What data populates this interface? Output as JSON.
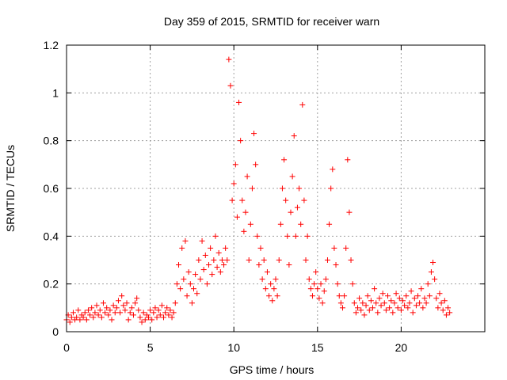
{
  "chart_data": {
    "type": "scatter",
    "title": "Day 359 of 2015, SRMTID for receiver warn",
    "xlabel": "GPS time / hours",
    "ylabel": "SRMTID / TECUs",
    "xlim": [
      0,
      25
    ],
    "ylim": [
      0,
      1.2
    ],
    "xticks": [
      0,
      5,
      10,
      15,
      20
    ],
    "xtick_labels": [
      "0",
      "5",
      "10",
      "15",
      "20"
    ],
    "yticks": [
      0,
      0.2,
      0.4,
      0.6,
      0.8,
      1,
      1.2
    ],
    "ytick_labels": [
      "0",
      "0.2",
      "0.4",
      "0.6",
      "0.8",
      "1",
      "1.2"
    ],
    "grid": true,
    "marker": "+",
    "color": "#ff0000",
    "series": [
      {
        "name": "SRMTID",
        "points": [
          [
            0.0,
            0.05
          ],
          [
            0.1,
            0.07
          ],
          [
            0.2,
            0.04
          ],
          [
            0.3,
            0.06
          ],
          [
            0.4,
            0.08
          ],
          [
            0.5,
            0.05
          ],
          [
            0.6,
            0.06
          ],
          [
            0.7,
            0.09
          ],
          [
            0.8,
            0.05
          ],
          [
            0.9,
            0.07
          ],
          [
            1.0,
            0.06
          ],
          [
            1.1,
            0.08
          ],
          [
            1.2,
            0.05
          ],
          [
            1.3,
            0.09
          ],
          [
            1.4,
            0.07
          ],
          [
            1.5,
            0.1
          ],
          [
            1.6,
            0.06
          ],
          [
            1.7,
            0.08
          ],
          [
            1.8,
            0.11
          ],
          [
            1.9,
            0.07
          ],
          [
            2.0,
            0.09
          ],
          [
            2.1,
            0.06
          ],
          [
            2.2,
            0.12
          ],
          [
            2.3,
            0.08
          ],
          [
            2.4,
            0.1
          ],
          [
            2.5,
            0.07
          ],
          [
            2.6,
            0.09
          ],
          [
            2.7,
            0.05
          ],
          [
            2.8,
            0.11
          ],
          [
            2.9,
            0.08
          ],
          [
            3.0,
            0.1
          ],
          [
            3.1,
            0.13
          ],
          [
            3.2,
            0.08
          ],
          [
            3.3,
            0.15
          ],
          [
            3.4,
            0.11
          ],
          [
            3.5,
            0.09
          ],
          [
            3.6,
            0.12
          ],
          [
            3.7,
            0.05
          ],
          [
            3.8,
            0.08
          ],
          [
            3.9,
            0.1
          ],
          [
            4.0,
            0.07
          ],
          [
            4.1,
            0.12
          ],
          [
            4.2,
            0.14
          ],
          [
            4.3,
            0.09
          ],
          [
            4.4,
            0.06
          ],
          [
            4.5,
            0.04
          ],
          [
            4.6,
            0.08
          ],
          [
            4.7,
            0.05
          ],
          [
            4.8,
            0.07
          ],
          [
            4.9,
            0.06
          ],
          [
            5.0,
            0.09
          ],
          [
            5.1,
            0.05
          ],
          [
            5.2,
            0.08
          ],
          [
            5.3,
            0.1
          ],
          [
            5.4,
            0.06
          ],
          [
            5.5,
            0.09
          ],
          [
            5.6,
            0.07
          ],
          [
            5.7,
            0.11
          ],
          [
            5.8,
            0.06
          ],
          [
            5.9,
            0.08
          ],
          [
            6.0,
            0.1
          ],
          [
            6.1,
            0.07
          ],
          [
            6.2,
            0.09
          ],
          [
            6.3,
            0.06
          ],
          [
            6.4,
            0.08
          ],
          [
            6.5,
            0.12
          ],
          [
            6.6,
            0.2
          ],
          [
            6.7,
            0.28
          ],
          [
            6.8,
            0.18
          ],
          [
            6.9,
            0.35
          ],
          [
            7.0,
            0.22
          ],
          [
            7.1,
            0.38
          ],
          [
            7.2,
            0.15
          ],
          [
            7.3,
            0.25
          ],
          [
            7.4,
            0.2
          ],
          [
            7.5,
            0.12
          ],
          [
            7.6,
            0.18
          ],
          [
            7.7,
            0.24
          ],
          [
            7.8,
            0.16
          ],
          [
            7.9,
            0.3
          ],
          [
            8.0,
            0.22
          ],
          [
            8.1,
            0.38
          ],
          [
            8.2,
            0.26
          ],
          [
            8.3,
            0.32
          ],
          [
            8.4,
            0.2
          ],
          [
            8.5,
            0.28
          ],
          [
            8.6,
            0.35
          ],
          [
            8.7,
            0.24
          ],
          [
            8.8,
            0.3
          ],
          [
            8.9,
            0.4
          ],
          [
            9.0,
            0.27
          ],
          [
            9.1,
            0.33
          ],
          [
            9.2,
            0.25
          ],
          [
            9.3,
            0.3
          ],
          [
            9.4,
            0.28
          ],
          [
            9.5,
            0.35
          ],
          [
            9.6,
            0.3
          ],
          [
            9.7,
            1.14
          ],
          [
            9.8,
            1.03
          ],
          [
            9.9,
            0.55
          ],
          [
            10.0,
            0.62
          ],
          [
            10.1,
            0.7
          ],
          [
            10.2,
            0.48
          ],
          [
            10.3,
            0.96
          ],
          [
            10.4,
            0.8
          ],
          [
            10.5,
            0.55
          ],
          [
            10.6,
            0.42
          ],
          [
            10.7,
            0.5
          ],
          [
            10.8,
            0.65
          ],
          [
            10.9,
            0.3
          ],
          [
            11.0,
            0.45
          ],
          [
            11.1,
            0.6
          ],
          [
            11.2,
            0.83
          ],
          [
            11.3,
            0.7
          ],
          [
            11.4,
            0.4
          ],
          [
            11.5,
            0.28
          ],
          [
            11.6,
            0.35
          ],
          [
            11.7,
            0.22
          ],
          [
            11.8,
            0.3
          ],
          [
            11.9,
            0.18
          ],
          [
            12.0,
            0.25
          ],
          [
            12.1,
            0.15
          ],
          [
            12.2,
            0.2
          ],
          [
            12.3,
            0.13
          ],
          [
            12.4,
            0.18
          ],
          [
            12.5,
            0.22
          ],
          [
            12.6,
            0.15
          ],
          [
            12.7,
            0.3
          ],
          [
            12.8,
            0.45
          ],
          [
            12.9,
            0.6
          ],
          [
            13.0,
            0.72
          ],
          [
            13.1,
            0.55
          ],
          [
            13.2,
            0.4
          ],
          [
            13.3,
            0.28
          ],
          [
            13.4,
            0.5
          ],
          [
            13.5,
            0.65
          ],
          [
            13.6,
            0.82
          ],
          [
            13.7,
            0.4
          ],
          [
            13.8,
            0.52
          ],
          [
            13.9,
            0.6
          ],
          [
            14.0,
            0.45
          ],
          [
            14.1,
            0.95
          ],
          [
            14.2,
            0.55
          ],
          [
            14.3,
            0.3
          ],
          [
            14.4,
            0.4
          ],
          [
            14.5,
            0.22
          ],
          [
            14.6,
            0.18
          ],
          [
            14.7,
            0.15
          ],
          [
            14.8,
            0.2
          ],
          [
            14.9,
            0.25
          ],
          [
            15.0,
            0.18
          ],
          [
            15.1,
            0.14
          ],
          [
            15.2,
            0.2
          ],
          [
            15.3,
            0.12
          ],
          [
            15.4,
            0.17
          ],
          [
            15.5,
            0.22
          ],
          [
            15.6,
            0.3
          ],
          [
            15.7,
            0.45
          ],
          [
            15.8,
            0.6
          ],
          [
            15.9,
            0.68
          ],
          [
            16.0,
            0.35
          ],
          [
            16.1,
            0.28
          ],
          [
            16.2,
            0.2
          ],
          [
            16.3,
            0.15
          ],
          [
            16.4,
            0.12
          ],
          [
            16.5,
            0.1
          ],
          [
            16.6,
            0.15
          ],
          [
            16.7,
            0.35
          ],
          [
            16.8,
            0.72
          ],
          [
            16.9,
            0.5
          ],
          [
            17.0,
            0.3
          ],
          [
            17.1,
            0.2
          ],
          [
            17.2,
            0.12
          ],
          [
            17.3,
            0.08
          ],
          [
            17.4,
            0.1
          ],
          [
            17.5,
            0.14
          ],
          [
            17.6,
            0.09
          ],
          [
            17.7,
            0.12
          ],
          [
            17.8,
            0.07
          ],
          [
            17.9,
            0.11
          ],
          [
            18.0,
            0.15
          ],
          [
            18.1,
            0.09
          ],
          [
            18.2,
            0.13
          ],
          [
            18.3,
            0.1
          ],
          [
            18.4,
            0.18
          ],
          [
            18.5,
            0.12
          ],
          [
            18.6,
            0.08
          ],
          [
            18.7,
            0.14
          ],
          [
            18.8,
            0.11
          ],
          [
            18.9,
            0.16
          ],
          [
            19.0,
            0.12
          ],
          [
            19.1,
            0.09
          ],
          [
            19.2,
            0.15
          ],
          [
            19.3,
            0.1
          ],
          [
            19.4,
            0.13
          ],
          [
            19.5,
            0.08
          ],
          [
            19.6,
            0.12
          ],
          [
            19.7,
            0.16
          ],
          [
            19.8,
            0.1
          ],
          [
            19.9,
            0.14
          ],
          [
            20.0,
            0.09
          ],
          [
            20.1,
            0.13
          ],
          [
            20.2,
            0.11
          ],
          [
            20.3,
            0.15
          ],
          [
            20.4,
            0.1
          ],
          [
            20.5,
            0.12
          ],
          [
            20.6,
            0.17
          ],
          [
            20.7,
            0.08
          ],
          [
            20.8,
            0.14
          ],
          [
            20.9,
            0.11
          ],
          [
            21.0,
            0.15
          ],
          [
            21.1,
            0.12
          ],
          [
            21.2,
            0.18
          ],
          [
            21.3,
            0.1
          ],
          [
            21.4,
            0.14
          ],
          [
            21.5,
            0.12
          ],
          [
            21.6,
            0.2
          ],
          [
            21.7,
            0.15
          ],
          [
            21.8,
            0.25
          ],
          [
            21.9,
            0.29
          ],
          [
            22.0,
            0.22
          ],
          [
            22.1,
            0.14
          ],
          [
            22.2,
            0.1
          ],
          [
            22.3,
            0.16
          ],
          [
            22.4,
            0.12
          ],
          [
            22.5,
            0.09
          ],
          [
            22.6,
            0.13
          ],
          [
            22.7,
            0.07
          ],
          [
            22.8,
            0.1
          ],
          [
            22.9,
            0.08
          ]
        ]
      }
    ]
  }
}
